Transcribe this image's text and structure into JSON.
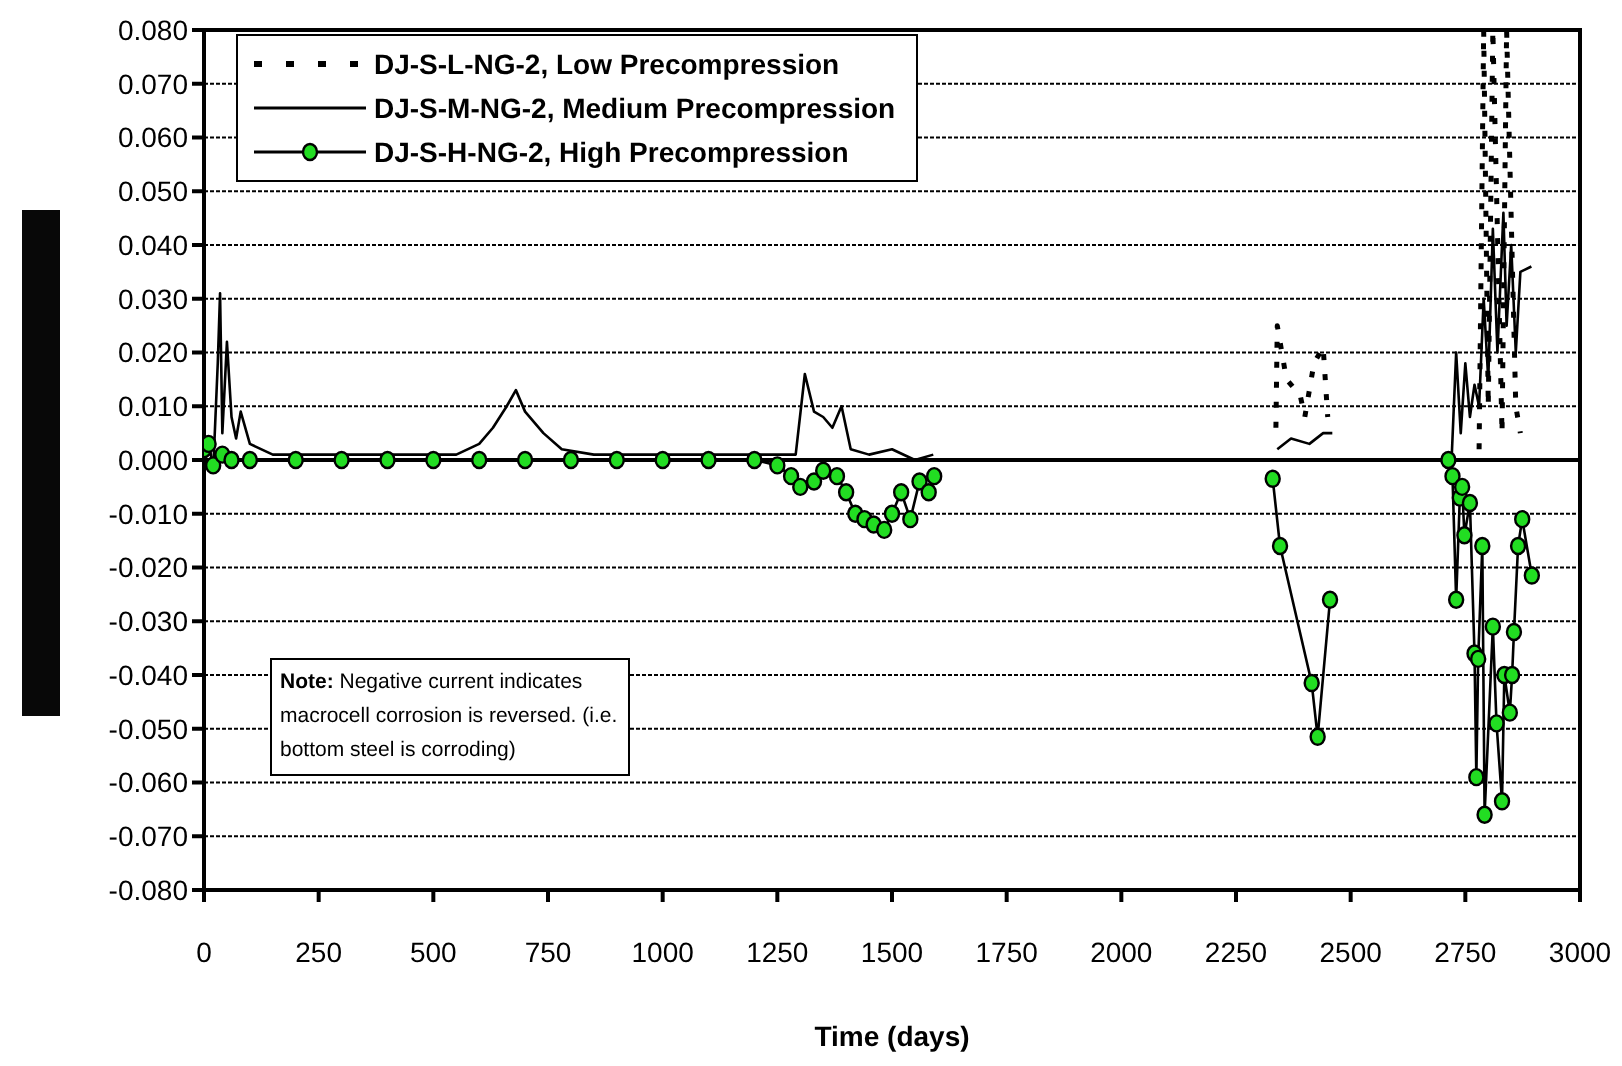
{
  "chart_data": {
    "type": "line",
    "xlabel": "Time  (days)",
    "xlim": [
      0,
      3000
    ],
    "xticks": [
      0,
      250,
      500,
      750,
      1000,
      1250,
      1500,
      1750,
      2000,
      2250,
      2500,
      2750,
      3000
    ],
    "ylim": [
      -0.08,
      0.08
    ],
    "yticks": [
      {
        "value": -0.08,
        "label": "-0.080"
      },
      {
        "value": -0.07,
        "label": "-0.070"
      },
      {
        "value": -0.06,
        "label": "-0.060"
      },
      {
        "value": -0.05,
        "label": "-0.050"
      },
      {
        "value": -0.04,
        "label": "-0.040"
      },
      {
        "value": -0.03,
        "label": "-0.030"
      },
      {
        "value": -0.02,
        "label": "-0.020"
      },
      {
        "value": -0.01,
        "label": "-0.010"
      },
      {
        "value": 0,
        "label": "0.000"
      },
      {
        "value": 0.01,
        "label": "0.010"
      },
      {
        "value": 0.02,
        "label": "0.020"
      },
      {
        "value": 0.03,
        "label": "0.030"
      },
      {
        "value": 0.04,
        "label": "0.040"
      },
      {
        "value": 0.05,
        "label": "0.050"
      },
      {
        "value": 0.06,
        "label": "0.060"
      },
      {
        "value": 0.07,
        "label": "0.070"
      },
      {
        "value": 0.08,
        "label": "0.080"
      }
    ],
    "grid": "y",
    "legend": "top left",
    "ref_lines": [
      {
        "axis": "y",
        "value": 0,
        "color": "#000000"
      }
    ],
    "annotations": [
      "Note: Negative current indicates macrocell corrosion is reversed. (i.e. bottom steel is corroding)"
    ],
    "series": [
      {
        "name": "DJ-S-L-NG-2,  Low Precompression",
        "color": "#000000",
        "line_style": "dotted",
        "marker": "none",
        "x": [
          2337,
          2340,
          2360,
          2390,
          2400,
          2420,
          2440,
          2450,
          2600,
          2780,
          2790,
          2800,
          2810,
          2830,
          2840,
          2860,
          2870
        ],
        "values": [
          0.006,
          0.025,
          0.015,
          0.012,
          0.008,
          0.018,
          0.021,
          0.008,
          null,
          0.002,
          0.08,
          0.01,
          0.08,
          0.005,
          0.08,
          0.01,
          0.005
        ]
      },
      {
        "name": "DJ-S-M-NG-2, Medium Precompression",
        "color": "#000000",
        "line_style": "solid",
        "marker": "none",
        "x": [
          0,
          20,
          30,
          35,
          40,
          50,
          60,
          70,
          80,
          100,
          150,
          300,
          550,
          600,
          630,
          660,
          680,
          700,
          740,
          780,
          850,
          1250,
          1290,
          1310,
          1330,
          1350,
          1370,
          1390,
          1410,
          1450,
          1500,
          1550,
          1590,
          2000,
          2340,
          2370,
          2410,
          2440,
          2460,
          2600,
          2720,
          2730,
          2740,
          2750,
          2760,
          2770,
          2780,
          2790,
          2800,
          2810,
          2820,
          2833,
          2840,
          2850,
          2860,
          2870,
          2894
        ],
        "values": [
          0,
          -0.002,
          0.018,
          0.031,
          0.005,
          0.022,
          0.008,
          0.004,
          0.009,
          0.003,
          0.001,
          0.001,
          0.001,
          0.003,
          0.006,
          0.01,
          0.013,
          0.009,
          0.005,
          0.002,
          0.001,
          0.001,
          0.001,
          0.016,
          0.009,
          0.008,
          0.006,
          0.01,
          0.002,
          0.001,
          0.002,
          0,
          0.001,
          null,
          0.002,
          0.004,
          0.003,
          0.005,
          0.005,
          null,
          0,
          0.02,
          0.005,
          0.018,
          0.008,
          0.014,
          0.01,
          0.03,
          0.015,
          0.043,
          0.02,
          0.046,
          0.025,
          0.04,
          0.02,
          0.035,
          0.036
        ]
      },
      {
        "name": "DJ-S-H-NG-2,  High Precompression",
        "color": "#22dd22",
        "line_style": "solid",
        "marker": "circle",
        "x": [
          0,
          10,
          20,
          40,
          60,
          100,
          200,
          300,
          400,
          500,
          600,
          700,
          800,
          900,
          1000,
          1100,
          1200,
          1250,
          1280,
          1300,
          1330,
          1350,
          1380,
          1400,
          1420,
          1440,
          1460,
          1483,
          1500,
          1520,
          1540,
          1560,
          1580,
          1592,
          2000,
          2330,
          2346,
          2415,
          2428,
          2455,
          2600,
          2713,
          2722,
          2730,
          2738,
          2743,
          2748,
          2760,
          2770,
          2774,
          2778,
          2787,
          2792,
          2810,
          2818,
          2830,
          2835,
          2847,
          2852,
          2856,
          2865,
          2874,
          2895
        ],
        "values": [
          0.002,
          0.003,
          -0.001,
          0.001,
          0,
          0,
          0,
          0,
          0,
          0,
          0,
          0,
          0,
          0,
          0,
          0,
          0,
          -0.001,
          -0.003,
          -0.005,
          -0.004,
          -0.002,
          -0.003,
          -0.006,
          -0.01,
          -0.011,
          -0.012,
          -0.013,
          -0.01,
          -0.006,
          -0.011,
          -0.004,
          -0.006,
          -0.003,
          null,
          -0.0035,
          -0.016,
          -0.0415,
          -0.0515,
          -0.026,
          null,
          0,
          -0.003,
          -0.026,
          -0.007,
          -0.005,
          -0.014,
          -0.008,
          -0.036,
          -0.059,
          -0.037,
          -0.016,
          -0.066,
          -0.031,
          -0.049,
          -0.0635,
          -0.04,
          -0.047,
          -0.04,
          -0.032,
          -0.016,
          -0.011,
          -0.0215
        ]
      }
    ]
  }
}
